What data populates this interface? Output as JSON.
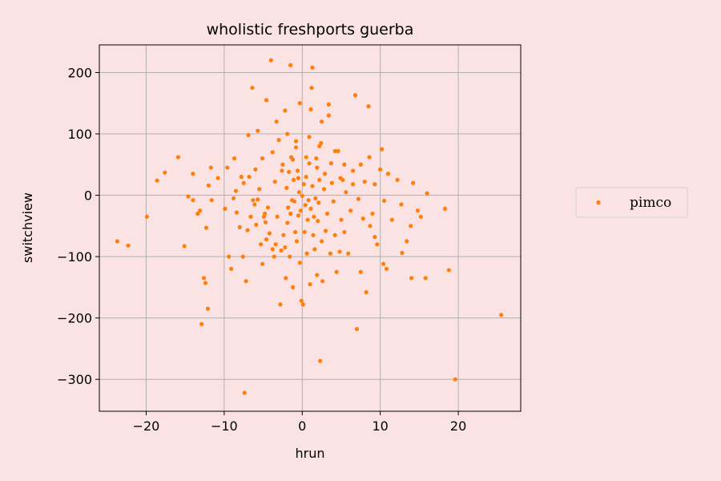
{
  "chart_data": {
    "type": "scatter",
    "title": "wholistic freshports guerba",
    "xlabel": "hrun",
    "ylabel": "switchview",
    "xlim": [
      -26,
      28
    ],
    "ylim": [
      -352,
      245
    ],
    "xticks": [
      -20,
      -10,
      0,
      10,
      20
    ],
    "xtick_labels": [
      "−20",
      "−10",
      "0",
      "10",
      "20"
    ],
    "yticks": [
      -300,
      -200,
      -100,
      0,
      100,
      200
    ],
    "ytick_labels": [
      "−300",
      "−200",
      "−100",
      "0",
      "100",
      "200"
    ],
    "grid": true,
    "legend_position": "right",
    "colors": {
      "series": "#ff7f0e",
      "grid": "#b0b0b0",
      "background": "#fbe3e4"
    },
    "series": [
      {
        "name": "pimco",
        "points": [
          [
            -23.7,
            -75
          ],
          [
            -22.3,
            -82
          ],
          [
            -19.9,
            -35
          ],
          [
            -18.6,
            24
          ],
          [
            -17.6,
            37
          ],
          [
            -15.9,
            62
          ],
          [
            -15.1,
            -83
          ],
          [
            -14.6,
            -2
          ],
          [
            -14.0,
            -8
          ],
          [
            -14.0,
            35
          ],
          [
            -13.4,
            -30
          ],
          [
            -13.1,
            -25
          ],
          [
            -12.9,
            -210
          ],
          [
            -12.6,
            -135
          ],
          [
            -12.4,
            -143
          ],
          [
            -12.3,
            -53
          ],
          [
            -12.1,
            -185
          ],
          [
            -12.0,
            16
          ],
          [
            -11.7,
            45
          ],
          [
            -9.9,
            -22
          ],
          [
            -9.4,
            -100
          ],
          [
            -9.1,
            -120
          ],
          [
            -8.8,
            -5
          ],
          [
            -8.5,
            7
          ],
          [
            -8.4,
            -28
          ],
          [
            -8.0,
            -52
          ],
          [
            -7.6,
            -100
          ],
          [
            -7.5,
            20
          ],
          [
            -7.4,
            -322
          ],
          [
            -7.2,
            -140
          ],
          [
            -7.0,
            -57
          ],
          [
            -6.8,
            30
          ],
          [
            -6.6,
            -35
          ],
          [
            -6.4,
            175
          ],
          [
            -6.3,
            -8
          ],
          [
            -6.0,
            42
          ],
          [
            -5.9,
            -48
          ],
          [
            -5.7,
            -7
          ],
          [
            -5.5,
            10
          ],
          [
            -5.3,
            -80
          ],
          [
            -5.1,
            -112
          ],
          [
            -4.9,
            -35
          ],
          [
            -4.7,
            -44
          ],
          [
            -4.6,
            -72
          ],
          [
            -4.4,
            -20
          ],
          [
            -4.2,
            -62
          ],
          [
            -4.0,
            220
          ],
          [
            -3.8,
            -88
          ],
          [
            -3.6,
            -100
          ],
          [
            -3.4,
            -80
          ],
          [
            -3.2,
            -35
          ],
          [
            -3.0,
            90
          ],
          [
            -2.8,
            -178
          ],
          [
            -2.7,
            -90
          ],
          [
            -2.5,
            50
          ],
          [
            -2.4,
            -65
          ],
          [
            -2.2,
            -85
          ],
          [
            -2.1,
            -135
          ],
          [
            -2.0,
            12
          ],
          [
            -1.9,
            -45
          ],
          [
            -1.8,
            -20
          ],
          [
            -1.7,
            38
          ],
          [
            -1.6,
            -100
          ],
          [
            -1.5,
            -30
          ],
          [
            -1.4,
            62
          ],
          [
            -1.3,
            -8
          ],
          [
            -1.2,
            -150
          ],
          [
            -1.1,
            25
          ],
          [
            -1.0,
            -10
          ],
          [
            -0.9,
            -60
          ],
          [
            -0.8,
            88
          ],
          [
            -0.7,
            -75
          ],
          [
            -0.6,
            40
          ],
          [
            -0.5,
            -33
          ],
          [
            -0.4,
            5
          ],
          [
            -0.3,
            -110
          ],
          [
            -0.2,
            -25
          ],
          [
            -0.1,
            -172
          ],
          [
            0.0,
            -1
          ],
          [
            0.1,
            -178
          ],
          [
            0.2,
            18
          ],
          [
            0.3,
            -60
          ],
          [
            0.4,
            -16
          ],
          [
            0.5,
            30
          ],
          [
            0.6,
            -95
          ],
          [
            0.7,
            -40
          ],
          [
            0.8,
            -8
          ],
          [
            0.9,
            52
          ],
          [
            1.0,
            -145
          ],
          [
            1.1,
            -22
          ],
          [
            1.2,
            175
          ],
          [
            1.3,
            15
          ],
          [
            1.4,
            -65
          ],
          [
            1.5,
            -35
          ],
          [
            1.6,
            -88
          ],
          [
            1.7,
            -5
          ],
          [
            1.8,
            60
          ],
          [
            1.9,
            -130
          ],
          [
            2.0,
            -42
          ],
          [
            2.1,
            -12
          ],
          [
            2.2,
            25
          ],
          [
            2.3,
            -270
          ],
          [
            2.4,
            85
          ],
          [
            2.5,
            -75
          ],
          [
            2.6,
            -140
          ],
          [
            2.8,
            10
          ],
          [
            3.0,
            -58
          ],
          [
            3.2,
            -30
          ],
          [
            3.4,
            130
          ],
          [
            3.6,
            -95
          ],
          [
            3.8,
            20
          ],
          [
            4.0,
            -10
          ],
          [
            4.2,
            -65
          ],
          [
            4.4,
            -125
          ],
          [
            4.6,
            72
          ],
          [
            4.8,
            -92
          ],
          [
            5.0,
            -40
          ],
          [
            5.2,
            25
          ],
          [
            5.4,
            -60
          ],
          [
            5.6,
            5
          ],
          [
            5.9,
            -95
          ],
          [
            6.2,
            -25
          ],
          [
            6.5,
            18
          ],
          [
            6.8,
            163
          ],
          [
            7.0,
            -218
          ],
          [
            7.2,
            -6
          ],
          [
            7.5,
            -125
          ],
          [
            7.8,
            -38
          ],
          [
            8.0,
            22
          ],
          [
            8.2,
            -158
          ],
          [
            8.5,
            145
          ],
          [
            8.7,
            -50
          ],
          [
            9.0,
            -30
          ],
          [
            9.3,
            -68
          ],
          [
            9.6,
            -80
          ],
          [
            10.0,
            42
          ],
          [
            10.2,
            75
          ],
          [
            10.4,
            -112
          ],
          [
            10.8,
            -120
          ],
          [
            11.0,
            35
          ],
          [
            11.5,
            -40
          ],
          [
            12.2,
            25
          ],
          [
            12.8,
            -94
          ],
          [
            13.4,
            -75
          ],
          [
            14.0,
            -135
          ],
          [
            14.2,
            20
          ],
          [
            14.8,
            -25
          ],
          [
            15.2,
            -35
          ],
          [
            15.8,
            -135
          ],
          [
            16.0,
            3
          ],
          [
            18.3,
            -22
          ],
          [
            18.8,
            -122
          ],
          [
            19.6,
            -300
          ],
          [
            25.5,
            -195
          ],
          [
            -1.5,
            212
          ],
          [
            1.3,
            208
          ],
          [
            -0.3,
            150
          ],
          [
            1.1,
            140
          ],
          [
            -3.3,
            120
          ],
          [
            2.5,
            120
          ],
          [
            -4.6,
            155
          ],
          [
            -2.2,
            138
          ],
          [
            3.4,
            148
          ],
          [
            0.9,
            95
          ],
          [
            -0.8,
            78
          ],
          [
            2.2,
            80
          ],
          [
            4.2,
            72
          ],
          [
            -1.2,
            58
          ],
          [
            3.7,
            52
          ],
          [
            -2.6,
            40
          ],
          [
            1.9,
            45
          ],
          [
            -0.5,
            28
          ],
          [
            2.9,
            35
          ],
          [
            -3.5,
            22
          ],
          [
            4.9,
            28
          ],
          [
            0.5,
            62
          ],
          [
            -1.9,
            100
          ],
          [
            5.4,
            50
          ],
          [
            6.5,
            40
          ],
          [
            7.5,
            50
          ],
          [
            8.6,
            62
          ],
          [
            9.3,
            18
          ],
          [
            10.5,
            -9
          ],
          [
            12.7,
            -15
          ],
          [
            13.9,
            -50
          ],
          [
            -5.7,
            105
          ],
          [
            -6.9,
            98
          ],
          [
            -8.7,
            60
          ],
          [
            -9.6,
            45
          ],
          [
            -10.8,
            28
          ],
          [
            -11.6,
            -8
          ],
          [
            -5.1,
            60
          ],
          [
            -3.8,
            70
          ],
          [
            -7.8,
            30
          ],
          [
            -6.1,
            -15
          ],
          [
            -4.8,
            -30
          ]
        ]
      }
    ]
  }
}
